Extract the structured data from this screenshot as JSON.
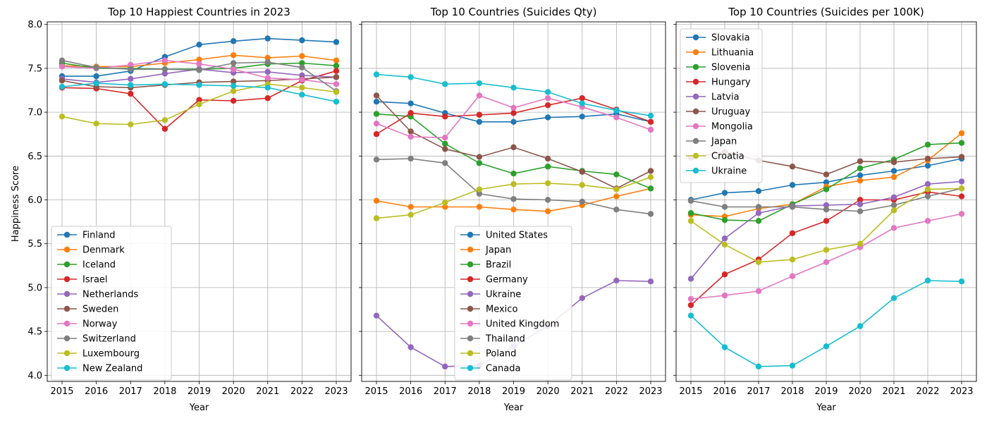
{
  "chart_data": [
    {
      "type": "line",
      "title": "Top 10 Happiest Countries in 2023",
      "xlabel": "Year",
      "ylabel": "Happiness Score",
      "x": [
        2015,
        2016,
        2017,
        2018,
        2019,
        2020,
        2021,
        2022,
        2023
      ],
      "ylim": [
        3.93,
        8.03
      ],
      "yticks": [
        "4.0",
        "4.5",
        "5.0",
        "5.5",
        "6.0",
        "6.5",
        "7.0",
        "7.5",
        "8.0"
      ],
      "grid": true,
      "legend": "lower-left",
      "series": [
        {
          "name": "Finland",
          "color": "#1f77b4",
          "values": [
            7.41,
            7.41,
            7.47,
            7.63,
            7.77,
            7.81,
            7.84,
            7.82,
            7.8
          ]
        },
        {
          "name": "Denmark",
          "color": "#ff7f0e",
          "values": [
            7.53,
            7.52,
            7.52,
            7.56,
            7.6,
            7.65,
            7.62,
            7.64,
            7.59
          ]
        },
        {
          "name": "Iceland",
          "color": "#2ca02c",
          "values": [
            7.56,
            7.5,
            7.5,
            7.49,
            7.49,
            7.5,
            7.55,
            7.56,
            7.53
          ]
        },
        {
          "name": "Israel",
          "color": "#d62728",
          "values": [
            7.28,
            7.27,
            7.21,
            6.81,
            7.14,
            7.13,
            7.16,
            7.36,
            7.47
          ]
        },
        {
          "name": "Netherlands",
          "color": "#9467bd",
          "values": [
            7.38,
            7.34,
            7.38,
            7.44,
            7.49,
            7.45,
            7.46,
            7.42,
            7.4
          ]
        },
        {
          "name": "Sweden",
          "color": "#8c564b",
          "values": [
            7.36,
            7.29,
            7.28,
            7.31,
            7.34,
            7.35,
            7.36,
            7.38,
            7.4
          ]
        },
        {
          "name": "Norway",
          "color": "#e377c2",
          "values": [
            7.52,
            7.5,
            7.54,
            7.59,
            7.55,
            7.49,
            7.39,
            7.37,
            7.32
          ]
        },
        {
          "name": "Switzerland",
          "color": "#7f7f7f",
          "values": [
            7.59,
            7.51,
            7.49,
            7.49,
            7.48,
            7.56,
            7.57,
            7.51,
            7.24
          ]
        },
        {
          "name": "Luxembourg",
          "color": "#bcbd22",
          "values": [
            6.95,
            6.87,
            6.86,
            6.91,
            7.09,
            7.24,
            7.32,
            7.28,
            7.23
          ]
        },
        {
          "name": "New Zealand",
          "color": "#17becf",
          "values": [
            7.29,
            7.33,
            7.31,
            7.32,
            7.31,
            7.3,
            7.28,
            7.2,
            7.12
          ]
        }
      ]
    },
    {
      "type": "line",
      "title": "Top 10 Countries (Suicides Qty)",
      "xlabel": "Year",
      "ylabel": "",
      "x": [
        2015,
        2016,
        2017,
        2018,
        2019,
        2020,
        2021,
        2022,
        2023
      ],
      "ylim": [
        3.93,
        8.03
      ],
      "grid": true,
      "legend": "lower-center",
      "series": [
        {
          "name": "United States",
          "color": "#1f77b4",
          "values": [
            7.12,
            7.1,
            6.99,
            6.89,
            6.89,
            6.94,
            6.95,
            6.98,
            6.89
          ]
        },
        {
          "name": "Japan",
          "color": "#ff7f0e",
          "values": [
            5.99,
            5.92,
            5.92,
            5.92,
            5.89,
            5.87,
            5.94,
            6.04,
            6.13
          ]
        },
        {
          "name": "Brazil",
          "color": "#2ca02c",
          "values": [
            6.98,
            6.95,
            6.64,
            6.42,
            6.3,
            6.38,
            6.33,
            6.29,
            6.13
          ]
        },
        {
          "name": "Germany",
          "color": "#d62728",
          "values": [
            6.75,
            6.99,
            6.95,
            6.97,
            6.99,
            7.08,
            7.16,
            7.03,
            6.89
          ]
        },
        {
          "name": "Ukraine",
          "color": "#9467bd",
          "values": [
            4.68,
            4.32,
            4.1,
            4.11,
            4.33,
            4.56,
            4.88,
            5.08,
            5.07
          ]
        },
        {
          "name": "Mexico",
          "color": "#8c564b",
          "values": [
            7.19,
            6.78,
            6.58,
            6.49,
            6.6,
            6.47,
            6.32,
            6.13,
            6.33
          ]
        },
        {
          "name": "United Kingdom",
          "color": "#e377c2",
          "values": [
            6.87,
            6.72,
            6.71,
            7.19,
            7.05,
            7.16,
            7.06,
            6.94,
            6.8
          ]
        },
        {
          "name": "Thailand",
          "color": "#7f7f7f",
          "values": [
            6.46,
            6.47,
            6.42,
            6.07,
            6.01,
            6.0,
            5.98,
            5.89,
            5.84
          ]
        },
        {
          "name": "Poland",
          "color": "#bcbd22",
          "values": [
            5.79,
            5.83,
            5.97,
            6.12,
            6.18,
            6.19,
            6.17,
            6.12,
            6.26
          ]
        },
        {
          "name": "Canada",
          "color": "#17becf",
          "values": [
            7.43,
            7.4,
            7.32,
            7.33,
            7.28,
            7.23,
            7.1,
            7.02,
            6.96
          ]
        }
      ]
    },
    {
      "type": "line",
      "title": "Top 10 Countries (Suicides per 100K)",
      "xlabel": "Year",
      "ylabel": "",
      "x": [
        2015,
        2016,
        2017,
        2018,
        2019,
        2020,
        2021,
        2022,
        2023
      ],
      "ylim": [
        3.93,
        8.03
      ],
      "grid": true,
      "legend": "upper-left",
      "series": [
        {
          "name": "Slovakia",
          "color": "#1f77b4",
          "values": [
            6.0,
            6.08,
            6.1,
            6.17,
            6.2,
            6.28,
            6.33,
            6.39,
            6.47
          ]
        },
        {
          "name": "Lithuania",
          "color": "#ff7f0e",
          "values": [
            5.83,
            5.81,
            5.9,
            5.95,
            6.15,
            6.22,
            6.26,
            6.45,
            6.76
          ]
        },
        {
          "name": "Slovenia",
          "color": "#2ca02c",
          "values": [
            5.85,
            5.77,
            5.76,
            5.95,
            6.12,
            6.36,
            6.46,
            6.63,
            6.65
          ]
        },
        {
          "name": "Hungary",
          "color": "#d62728",
          "values": [
            4.8,
            5.15,
            5.32,
            5.62,
            5.76,
            6.0,
            6.0,
            6.09,
            6.04
          ]
        },
        {
          "name": "Latvia",
          "color": "#9467bd",
          "values": [
            5.1,
            5.56,
            5.85,
            5.93,
            5.94,
            5.95,
            6.03,
            6.18,
            6.21
          ]
        },
        {
          "name": "Uruguay",
          "color": "#8c564b",
          "values": [
            6.48,
            6.55,
            6.45,
            6.38,
            6.29,
            6.44,
            6.43,
            6.47,
            6.49
          ]
        },
        {
          "name": "Mongolia",
          "color": "#e377c2",
          "values": [
            4.87,
            4.91,
            4.96,
            5.13,
            5.29,
            5.46,
            5.68,
            5.76,
            5.84
          ]
        },
        {
          "name": "Japan",
          "color": "#7f7f7f",
          "values": [
            5.99,
            5.92,
            5.92,
            5.92,
            5.89,
            5.87,
            5.94,
            6.04,
            6.13
          ]
        },
        {
          "name": "Croatia",
          "color": "#bcbd22",
          "values": [
            5.76,
            5.49,
            5.29,
            5.32,
            5.43,
            5.5,
            5.88,
            6.12,
            6.13
          ]
        },
        {
          "name": "Ukraine",
          "color": "#17becf",
          "values": [
            4.68,
            4.32,
            4.1,
            4.11,
            4.33,
            4.56,
            4.88,
            5.08,
            5.07
          ]
        }
      ]
    }
  ]
}
